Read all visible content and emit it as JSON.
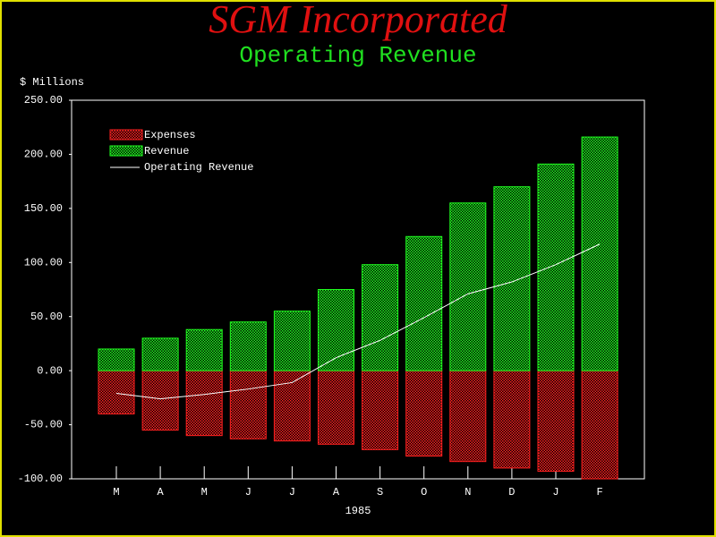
{
  "chart_data": {
    "type": "bar",
    "title": "SGM Incorporated",
    "subtitle": "Operating Revenue",
    "ylabel": "$ Millions",
    "xlabel": "1985",
    "categories": [
      "M",
      "A",
      "M",
      "J",
      "J",
      "A",
      "S",
      "O",
      "N",
      "D",
      "J",
      "F"
    ],
    "series": [
      {
        "name": "Expenses",
        "color": "#ff2020",
        "values": [
          -40,
          -55,
          -60,
          -63,
          -65,
          -68,
          -73,
          -79,
          -84,
          -90,
          -93,
          -100
        ]
      },
      {
        "name": "Revenue",
        "color": "#20ff20",
        "values": [
          20,
          30,
          38,
          45,
          55,
          75,
          98,
          124,
          155,
          170,
          191,
          216
        ]
      },
      {
        "name": "Operating Revenue",
        "color": "#ffffff",
        "type": "line",
        "values": [
          -21,
          -26,
          -22,
          -17,
          -11,
          12,
          28,
          49,
          71,
          82,
          98,
          117
        ]
      }
    ],
    "ylim": [
      -100,
      250
    ],
    "yticks": [
      {
        "value": -100,
        "label": "-100.00"
      },
      {
        "value": -50,
        "label": "-50.00"
      },
      {
        "value": 0,
        "label": "0.00"
      },
      {
        "value": 50,
        "label": "50.00"
      },
      {
        "value": 100,
        "label": "100.00"
      },
      {
        "value": 150,
        "label": "150.00"
      },
      {
        "value": 200,
        "label": "200.00"
      },
      {
        "value": 250,
        "label": "250.00"
      }
    ],
    "legend": "upper left"
  }
}
